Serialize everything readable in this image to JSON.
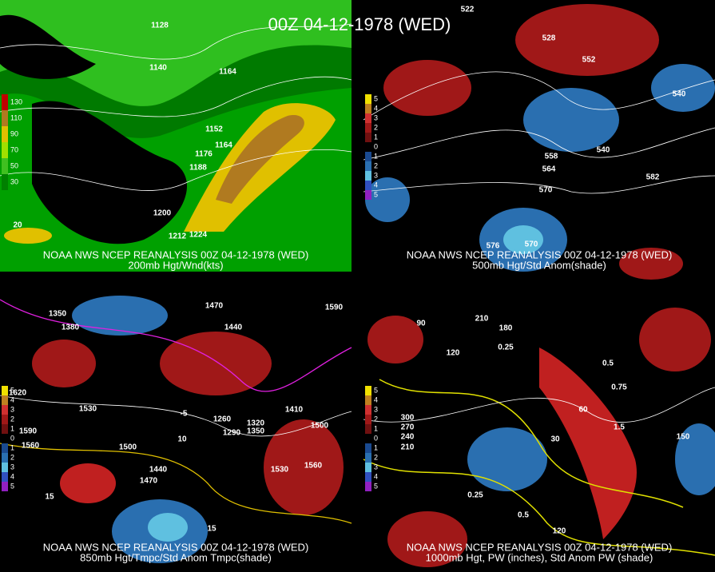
{
  "title": "00Z 04-12-1978 (WED)",
  "panels": [
    {
      "caption": [
        "NOAA NWS NCEP REANALYSIS 00Z 04-12-1978 (WED)",
        "200mb Hgt/Wnd(kts)"
      ],
      "legend": [
        "130",
        "110",
        "90",
        "70",
        "50",
        "30"
      ],
      "labels": [
        "1128",
        "1140",
        "1164",
        "1152",
        "1164",
        "1176",
        "1188",
        "1200",
        "1212",
        "1224",
        "20"
      ]
    },
    {
      "caption": [
        "NOAA NWS NCEP REANALYSIS 00Z 04-12-1978 (WED)",
        "500mb Hgt/Std Anom(shade)"
      ],
      "legend": [
        "5",
        "4",
        "3",
        "2",
        "1",
        "0",
        "1",
        "2",
        "3",
        "4",
        "5"
      ],
      "labels": [
        "522",
        "528",
        "552",
        "540",
        "540",
        "558",
        "564",
        "570",
        "582",
        "576",
        "570"
      ]
    },
    {
      "caption": [
        "NOAA NWS NCEP REANALYSIS 00Z 04-12-1978 (WED)",
        "850mb Hgt/Tmpc/Std Anom Tmpc(shade)"
      ],
      "legend": [
        "5",
        "4",
        "3",
        "2",
        "1",
        "0",
        "1",
        "2",
        "3",
        "4",
        "5"
      ],
      "labels": [
        "1350",
        "1380",
        "1470",
        "1440",
        "1590",
        "1620",
        "1530",
        "1590",
        "1560",
        "1500",
        "1440",
        "1470",
        "1260",
        "1290",
        "1320",
        "1350",
        "1410",
        "1500",
        "1530",
        "1560",
        "10",
        "15",
        "15",
        "-5"
      ]
    },
    {
      "caption": [
        "NOAA NWS NCEP REANALYSIS 00Z 04-12-1978 (WED)",
        "1000mb Hgt, PW (inches), Std Anom PW (shade)"
      ],
      "legend": [
        "5",
        "4",
        "3",
        "2",
        "1",
        "0",
        "1",
        "2",
        "3",
        "4",
        "5"
      ],
      "labels": [
        "90",
        "180",
        "210",
        "120",
        "270",
        "240",
        "210",
        "300",
        "0.25",
        "0.5",
        "0.75",
        "1.5",
        "150",
        "0.25",
        "0.5",
        "30",
        "60",
        "120"
      ]
    }
  ]
}
